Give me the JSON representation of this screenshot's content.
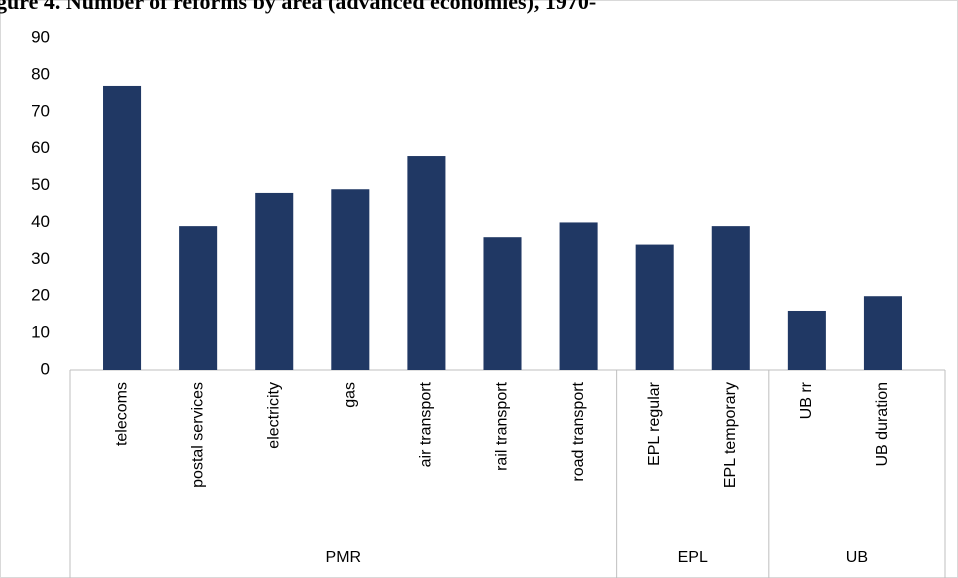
{
  "chart_data": {
    "type": "bar",
    "title": "gure 4. Number of reforms by area (advanced economies), 1970-",
    "category_groups": [
      {
        "name": "PMR",
        "categories": [
          "telecoms",
          "postal services",
          "electricity",
          "gas",
          "air transport",
          "rail transport",
          "road transport"
        ]
      },
      {
        "name": "EPL",
        "categories": [
          "EPL regular",
          "EPL temporary"
        ]
      },
      {
        "name": "UB",
        "categories": [
          "UB rr",
          "UB duration"
        ]
      }
    ],
    "values": [
      77,
      39,
      48,
      49,
      58,
      36,
      40,
      34,
      39,
      16,
      20
    ],
    "color": "#203864",
    "ylim": [
      0,
      90
    ],
    "yticks": [
      0,
      10,
      20,
      30,
      40,
      50,
      60,
      70,
      80,
      90
    ],
    "grid": false
  }
}
